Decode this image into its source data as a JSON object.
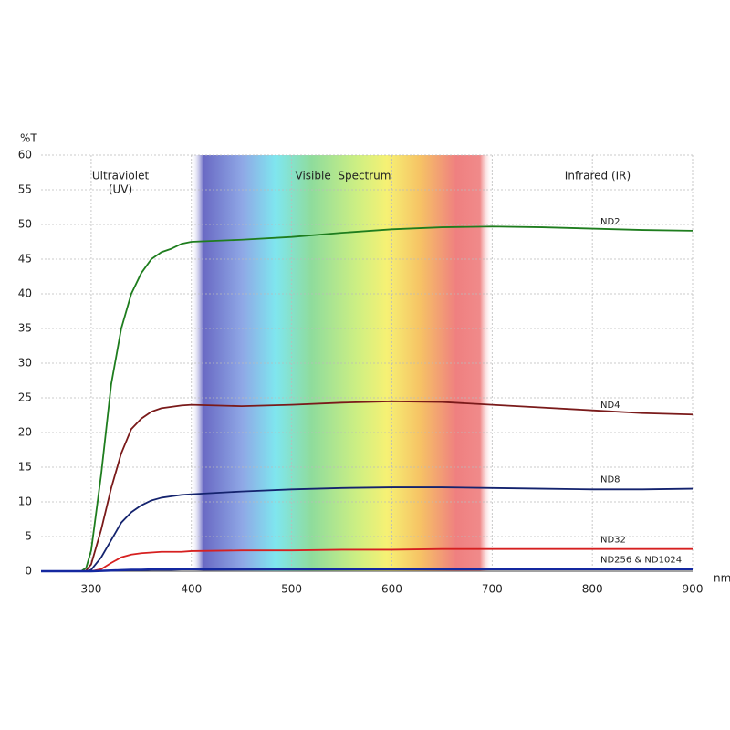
{
  "chart_data": {
    "type": "line",
    "x_label": "nm",
    "y_label": "%T",
    "annotations": [
      "Ultraviolet",
      "(UV)",
      "Visible  Spectrum",
      "Infrared (IR)"
    ],
    "shaded_region": [
      400,
      700
    ],
    "x": [
      250,
      280,
      290,
      295,
      300,
      310,
      320,
      330,
      340,
      350,
      360,
      370,
      380,
      390,
      400,
      450,
      500,
      550,
      600,
      650,
      700,
      750,
      800,
      850,
      900
    ],
    "series": [
      {
        "name": "ND2",
        "color": "#1e7d1e",
        "values": [
          0,
          0,
          0,
          0.5,
          3,
          14,
          27,
          35,
          40,
          43,
          45,
          46,
          46.5,
          47.2,
          47.5,
          47.8,
          48.2,
          48.8,
          49.3,
          49.6,
          49.7,
          49.6,
          49.4,
          49.2,
          49.1
        ]
      },
      {
        "name": "ND4",
        "color": "#7a1a1a",
        "values": [
          0,
          0,
          0,
          0.1,
          1,
          6,
          12,
          17,
          20.5,
          22,
          23,
          23.5,
          23.7,
          23.9,
          24,
          23.8,
          24,
          24.3,
          24.5,
          24.4,
          24,
          23.6,
          23.2,
          22.8,
          22.6
        ]
      },
      {
        "name": "ND8",
        "color": "#14236e",
        "values": [
          0,
          0,
          0,
          0,
          0.2,
          2,
          4.5,
          7,
          8.5,
          9.5,
          10.2,
          10.6,
          10.8,
          11,
          11.1,
          11.5,
          11.8,
          12,
          12.1,
          12.1,
          12,
          11.9,
          11.8,
          11.8,
          11.9
        ]
      },
      {
        "name": "ND32",
        "color": "#d62020",
        "values": [
          0,
          0,
          0,
          0,
          0,
          0.3,
          1.2,
          2,
          2.4,
          2.6,
          2.7,
          2.8,
          2.8,
          2.8,
          2.9,
          3,
          3,
          3.1,
          3.1,
          3.2,
          3.2,
          3.2,
          3.2,
          3.2,
          3.2
        ]
      },
      {
        "name": "ND256 & ND1024",
        "color": "#1428a0",
        "values": [
          0,
          0,
          0,
          0,
          0,
          0.05,
          0.1,
          0.15,
          0.2,
          0.2,
          0.25,
          0.25,
          0.25,
          0.3,
          0.3,
          0.3,
          0.3,
          0.3,
          0.3,
          0.3,
          0.3,
          0.3,
          0.3,
          0.3,
          0.3
        ]
      }
    ],
    "xlim": [
      250,
      900
    ],
    "xticks": [
      300,
      400,
      500,
      600,
      700,
      800,
      900
    ],
    "ylim": [
      0,
      60
    ],
    "yticks": [
      0,
      5,
      10,
      15,
      20,
      25,
      30,
      35,
      40,
      45,
      50,
      55,
      60
    ],
    "grid": true
  }
}
